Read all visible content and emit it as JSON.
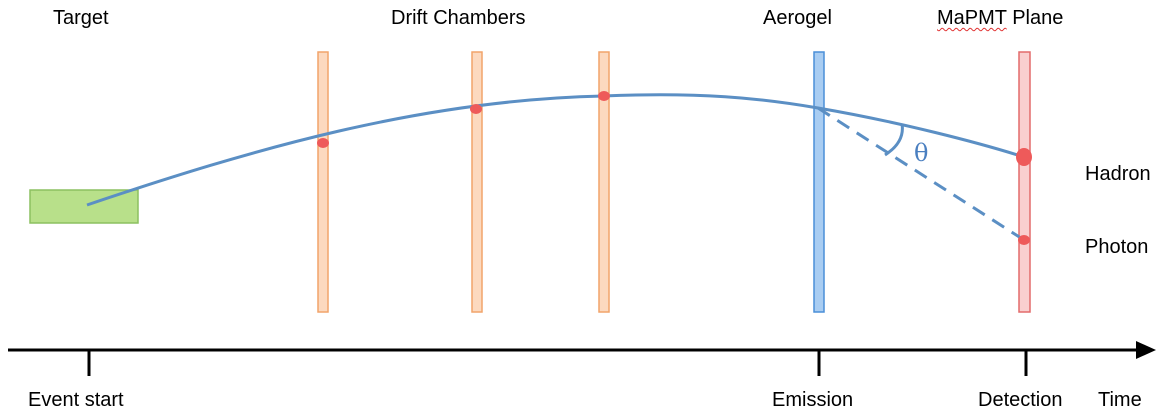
{
  "labels": {
    "target": "Target",
    "drift_chambers": "Drift Chambers",
    "aerogel": "Aerogel",
    "mapmt_prefix": "MaPMT",
    "mapmt_suffix": " Plane",
    "hadron": "Hadron",
    "photon": "Photon",
    "theta": "θ"
  },
  "time_axis": {
    "ticks": [
      "Event start",
      "Emission",
      "Detection"
    ],
    "axis_label": "Time"
  },
  "colors": {
    "target_fill": "#b8e08a",
    "target_stroke": "#8cc060",
    "drift_fill": "#fcd9bf",
    "drift_stroke": "#f2a46a",
    "aerogel_fill": "#a9cdf2",
    "aerogel_stroke": "#4a8fd8",
    "mapmt_fill": "#f9cfcf",
    "mapmt_stroke": "#e36b6b",
    "track": "#5b8fc4",
    "hit_point": "#ee5a5a",
    "axis": "#000000"
  }
}
